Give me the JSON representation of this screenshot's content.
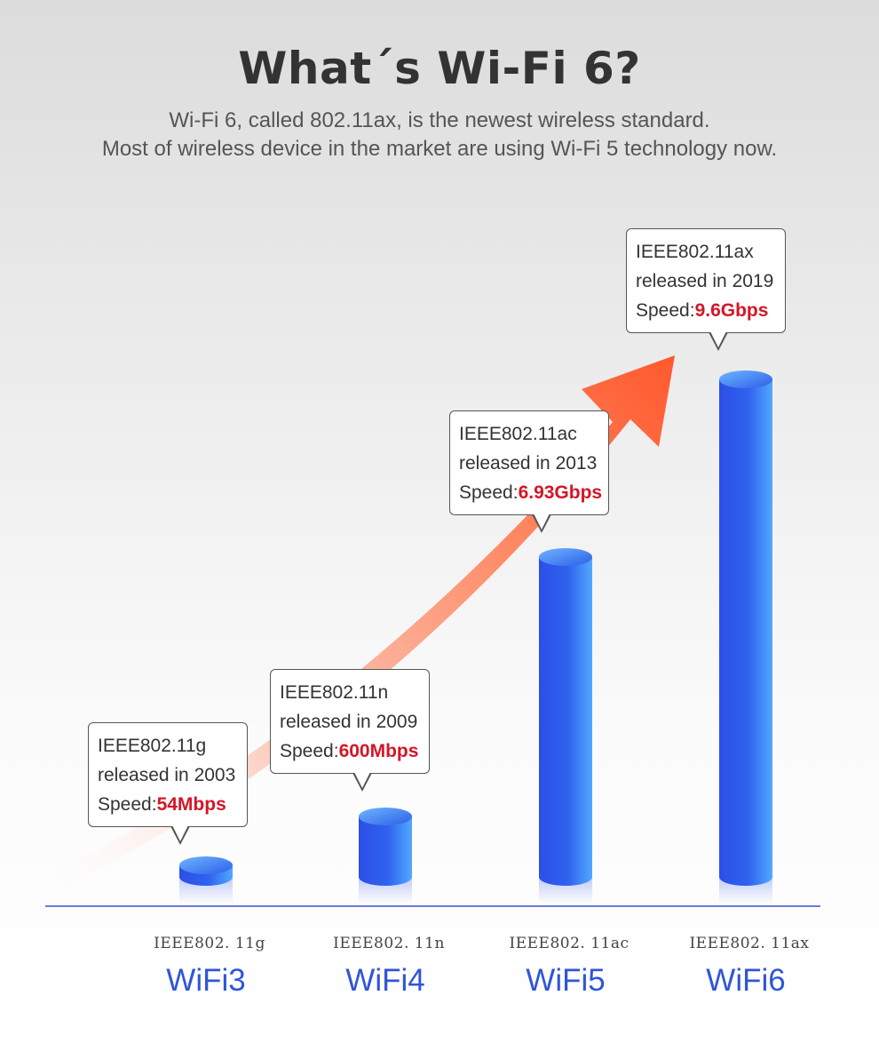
{
  "title": "What´s Wi-Fi 6?",
  "subtitle_line1": "Wi-Fi 6, called 802.11ax, is the newest wireless standard.",
  "subtitle_line2": "Most of wireless device in the market are using Wi-Fi 5 technology now.",
  "colors": {
    "bar": "#2f62ee",
    "bar_light": "#6fb5ff",
    "arrow": "#ff5a2e",
    "speed_highlight": "#d51528",
    "category_label": "#2f55d9",
    "baseline": "#3b4fd9"
  },
  "icons": [
    "trend-arrow-icon"
  ],
  "chart_data": {
    "type": "bar",
    "categories": [
      "WiFi3",
      "WiFi4",
      "WiFi5",
      "WiFi6"
    ],
    "standards": [
      "IEEE802. 11g",
      "IEEE802. 11n",
      "IEEE802. 11ac",
      "IEEE802. 11ax"
    ],
    "values": [
      0.054,
      0.6,
      6.93,
      9.6
    ],
    "unit": "Gbps",
    "title": "",
    "xlabel": "",
    "ylabel": "",
    "grid": false,
    "annotations": [
      {
        "standard": "IEEE802.11g",
        "released": "released in 2003",
        "speed_label": "Speed:",
        "speed_value": "54Mbps"
      },
      {
        "standard": "IEEE802.11n",
        "released": "released in 2009",
        "speed_label": "Speed:",
        "speed_value": "600Mbps"
      },
      {
        "standard": "IEEE802.11ac",
        "released": "released in 2013",
        "speed_label": "Speed:",
        "speed_value": "6.93Gbps"
      },
      {
        "standard": "IEEE802.11ax",
        "released": "released in 2019",
        "speed_label": "Speed:",
        "speed_value": "9.6Gbps"
      }
    ]
  }
}
